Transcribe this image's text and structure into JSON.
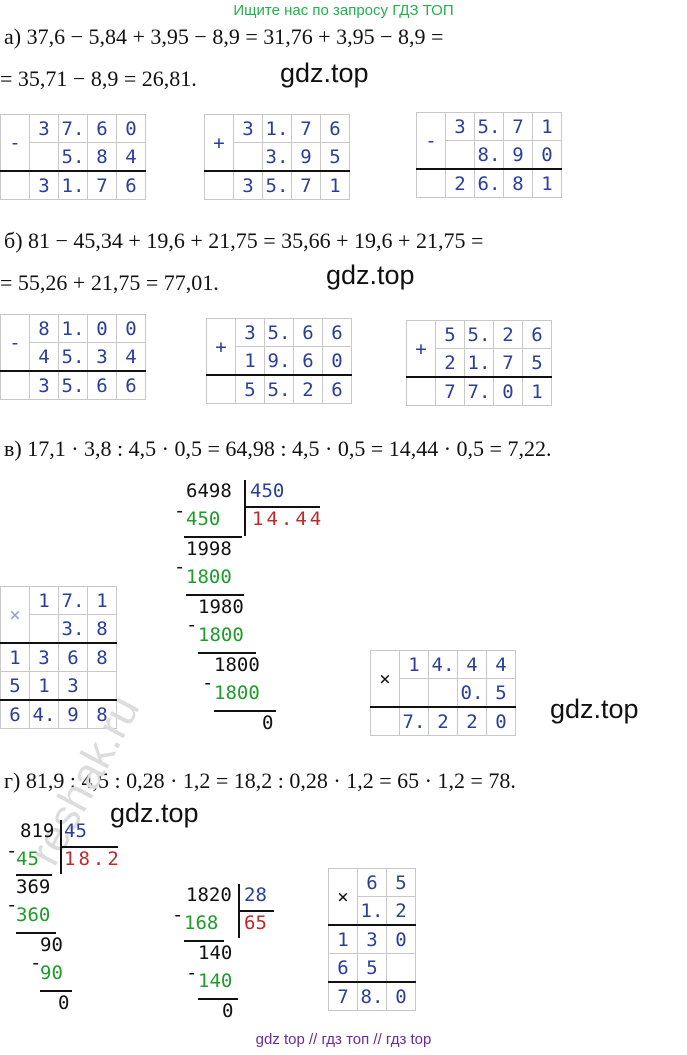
{
  "banner": "Ищите нас по запросу ГДЗ ТОП",
  "watermark": "gdz.top",
  "faint_watermark": "reshak.ru",
  "footer": "gdz top  //  гдз топ  //  гдз top",
  "a": {
    "line1": "а) 37,6 − 5,84 + 3,95 − 8,9 = 31,76 + 3,95 − 8,9 =",
    "line2": "= 35,71 − 8,9 = 26,81.",
    "tables": [
      {
        "op": "-",
        "rows": [
          [
            "3",
            "7.",
            "6",
            "0"
          ],
          [
            "",
            "5.",
            "8",
            "4"
          ],
          [
            "3",
            "1.",
            "7",
            "6"
          ]
        ]
      },
      {
        "op": "+",
        "rows": [
          [
            "3",
            "1.",
            "7",
            "6"
          ],
          [
            "",
            "3.",
            "9",
            "5"
          ],
          [
            "3",
            "5.",
            "7",
            "1"
          ]
        ]
      },
      {
        "op": "-",
        "rows": [
          [
            "3",
            "5.",
            "7",
            "1"
          ],
          [
            "",
            "8.",
            "9",
            "0"
          ],
          [
            "2",
            "6.",
            "8",
            "1"
          ]
        ]
      }
    ]
  },
  "b": {
    "line1": "б) 81 − 45,34 + 19,6 + 21,75 = 35,66 + 19,6 + 21,75 =",
    "line2": "= 55,26 + 21,75 = 77,01.",
    "tables": [
      {
        "op": "-",
        "rows": [
          [
            "8",
            "1.",
            "0",
            "0"
          ],
          [
            "4",
            "5.",
            "3",
            "4"
          ],
          [
            "3",
            "5.",
            "6",
            "6"
          ]
        ]
      },
      {
        "op": "+",
        "rows": [
          [
            "3",
            "5.",
            "6",
            "6"
          ],
          [
            "1",
            "9.",
            "6",
            "0"
          ],
          [
            "5",
            "5.",
            "2",
            "6"
          ]
        ]
      },
      {
        "op": "+",
        "rows": [
          [
            "5",
            "5.",
            "2",
            "6"
          ],
          [
            "2",
            "1.",
            "7",
            "5"
          ],
          [
            "7",
            "7.",
            "0",
            "1"
          ]
        ]
      }
    ]
  },
  "v": {
    "line1": "в) 17,1 · 3,8 : 4,5 · 0,5 = 64,98 : 4,5 · 0,5 = 14,44 · 0,5 = 7,22.",
    "mult1": {
      "op": "×",
      "rows": [
        [
          "",
          "1",
          "7.",
          "1"
        ],
        [
          "",
          "",
          "3.",
          "8"
        ],
        [
          "1",
          "3",
          "6",
          "8"
        ],
        [
          "5",
          "1",
          "3",
          ""
        ],
        [
          "6",
          "4.",
          "9",
          "8"
        ]
      ]
    },
    "division": {
      "dividend": "6498",
      "divisor": "450",
      "quotient": "14.44",
      "steps": [
        "450",
        "1998",
        "1800",
        "1980",
        "1800",
        "1800",
        "1800",
        "0"
      ]
    },
    "mult2": {
      "op": "×",
      "rows": [
        [
          "",
          "1",
          "4.",
          "4",
          "4"
        ],
        [
          "",
          "",
          "",
          "0.",
          "5"
        ],
        [
          "",
          "7.",
          "2",
          "2",
          "0"
        ]
      ]
    }
  },
  "g": {
    "line1": "г) 81,9 : 4,5 : 0,28 · 1,2 = 18,2 : 0,28 · 1,2 = 65 · 1,2 = 78.",
    "div1": {
      "dividend": "819",
      "divisor": "45",
      "quotient": "18.2",
      "steps": [
        "45",
        "369",
        "360",
        "90",
        "90",
        "0"
      ]
    },
    "div2": {
      "dividend": "1820",
      "divisor": "28",
      "quotient": "65",
      "steps": [
        "168",
        "140",
        "140",
        "0"
      ]
    },
    "mult": {
      "op": "×",
      "rows": [
        [
          "",
          "6",
          "5"
        ],
        [
          "",
          "1.",
          "2"
        ],
        [
          "1",
          "3",
          "0"
        ],
        [
          "6",
          "5",
          ""
        ],
        [
          "7",
          "8.",
          "0"
        ]
      ]
    }
  }
}
